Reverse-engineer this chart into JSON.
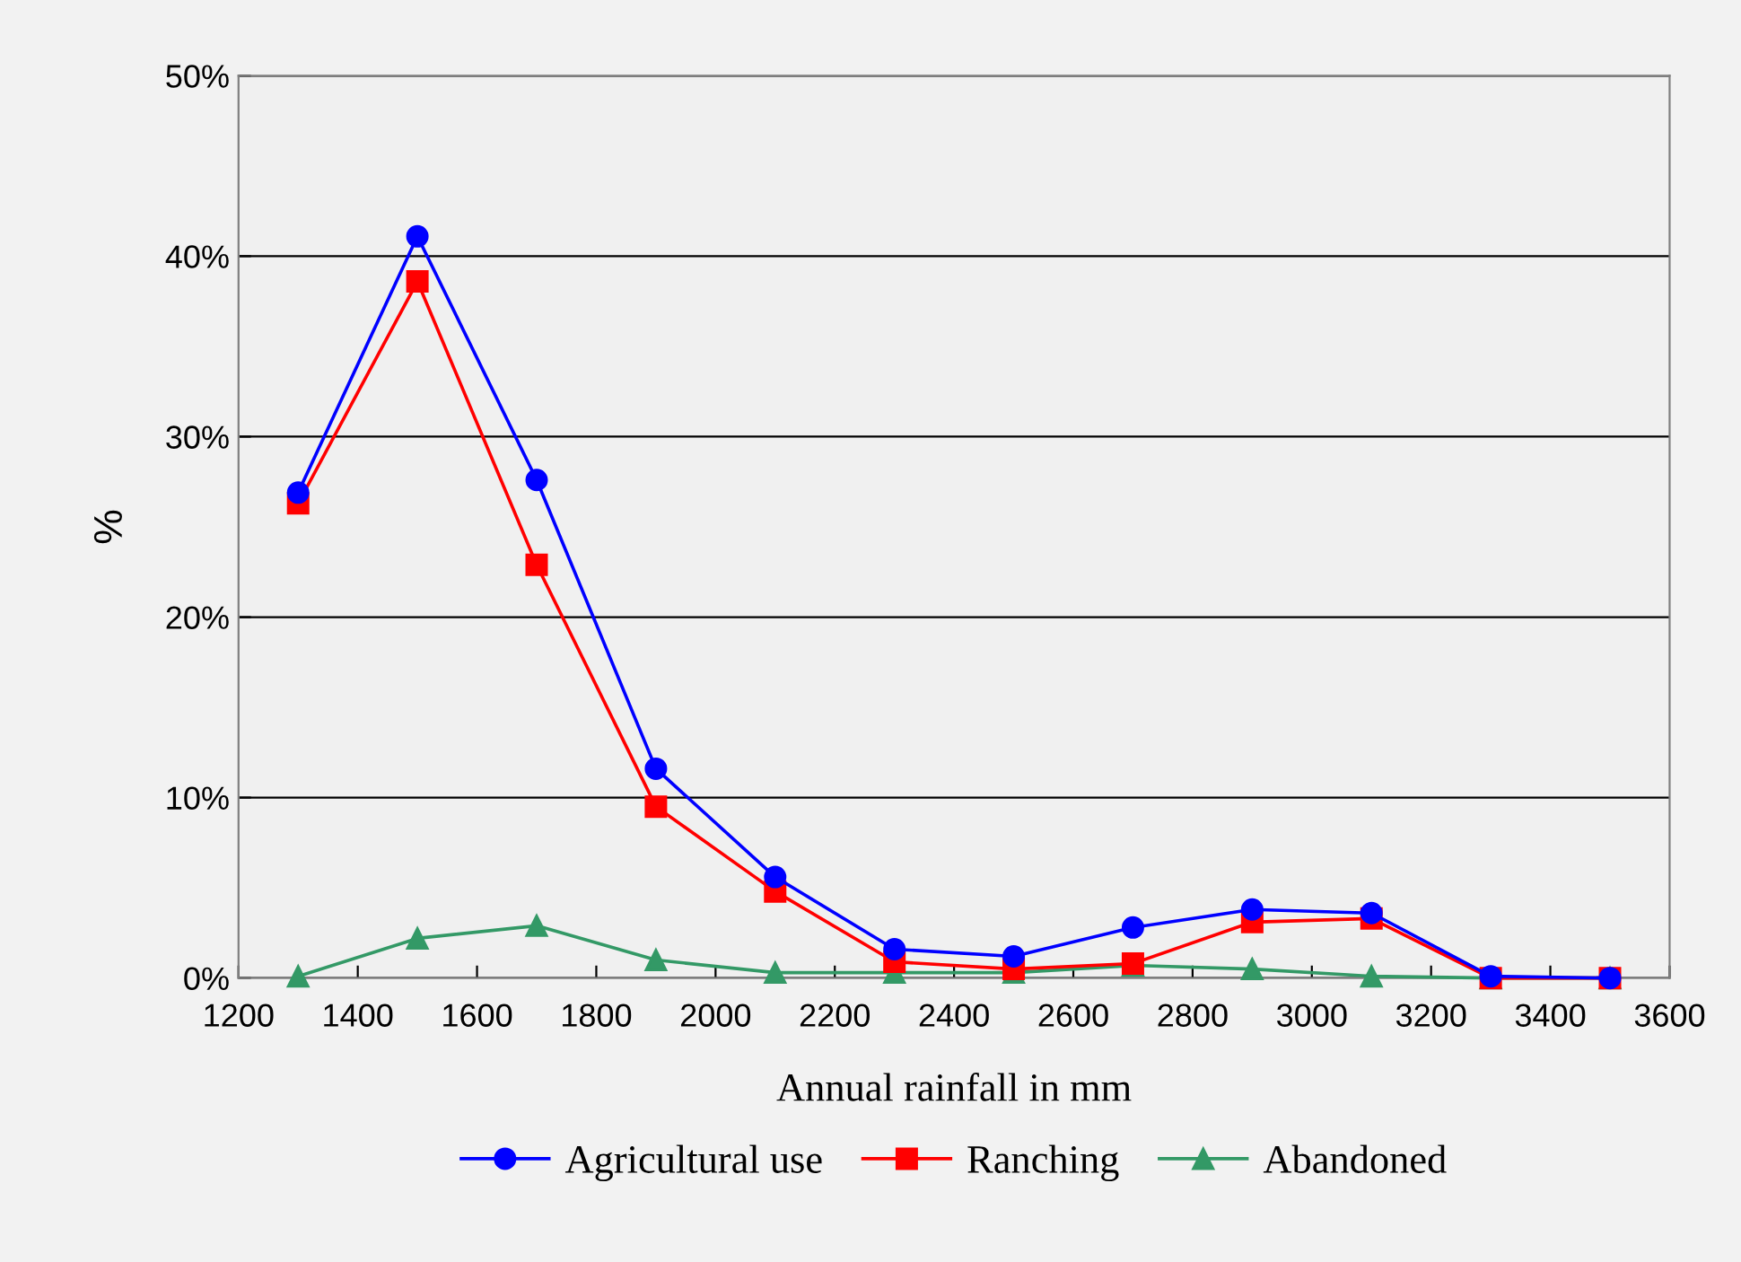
{
  "chart_data": {
    "type": "line",
    "xlabel": "Annual rainfall in mm",
    "ylabel": "%",
    "x": [
      1300,
      1500,
      1700,
      1900,
      2100,
      2300,
      2500,
      2700,
      2900,
      3100,
      3300,
      3500
    ],
    "series": [
      {
        "name": "Agricultural use",
        "color": "#0000ff",
        "marker": "circle",
        "values": [
          26.9,
          41.1,
          27.6,
          11.6,
          5.6,
          1.6,
          1.2,
          2.8,
          3.8,
          3.6,
          0.1,
          0
        ]
      },
      {
        "name": "Ranching",
        "color": "#ff0000",
        "marker": "square",
        "values": [
          26.3,
          38.6,
          22.9,
          9.5,
          4.8,
          0.9,
          0.5,
          0.8,
          3.1,
          3.3,
          0,
          0
        ]
      },
      {
        "name": "Abandoned",
        "color": "#339966",
        "marker": "triangle",
        "values": [
          0.1,
          2.2,
          2.9,
          1.0,
          0.3,
          0.3,
          0.3,
          0.7,
          0.5,
          0.1,
          0,
          0
        ]
      }
    ],
    "xlim": [
      1200,
      3600
    ],
    "xticks": [
      1200,
      1400,
      1600,
      1800,
      2000,
      2200,
      2400,
      2600,
      2800,
      3000,
      3200,
      3400,
      3600
    ],
    "ylim": [
      0,
      50
    ],
    "yticks": [
      {
        "value": 0,
        "label": "0%"
      },
      {
        "value": 10,
        "label": "10%"
      },
      {
        "value": 20,
        "label": "20%"
      },
      {
        "value": 30,
        "label": "30%"
      },
      {
        "value": 40,
        "label": "40%"
      },
      {
        "value": 50,
        "label": "50%"
      }
    ],
    "grid": "y",
    "legend": "bottom",
    "line_style": "solid"
  }
}
